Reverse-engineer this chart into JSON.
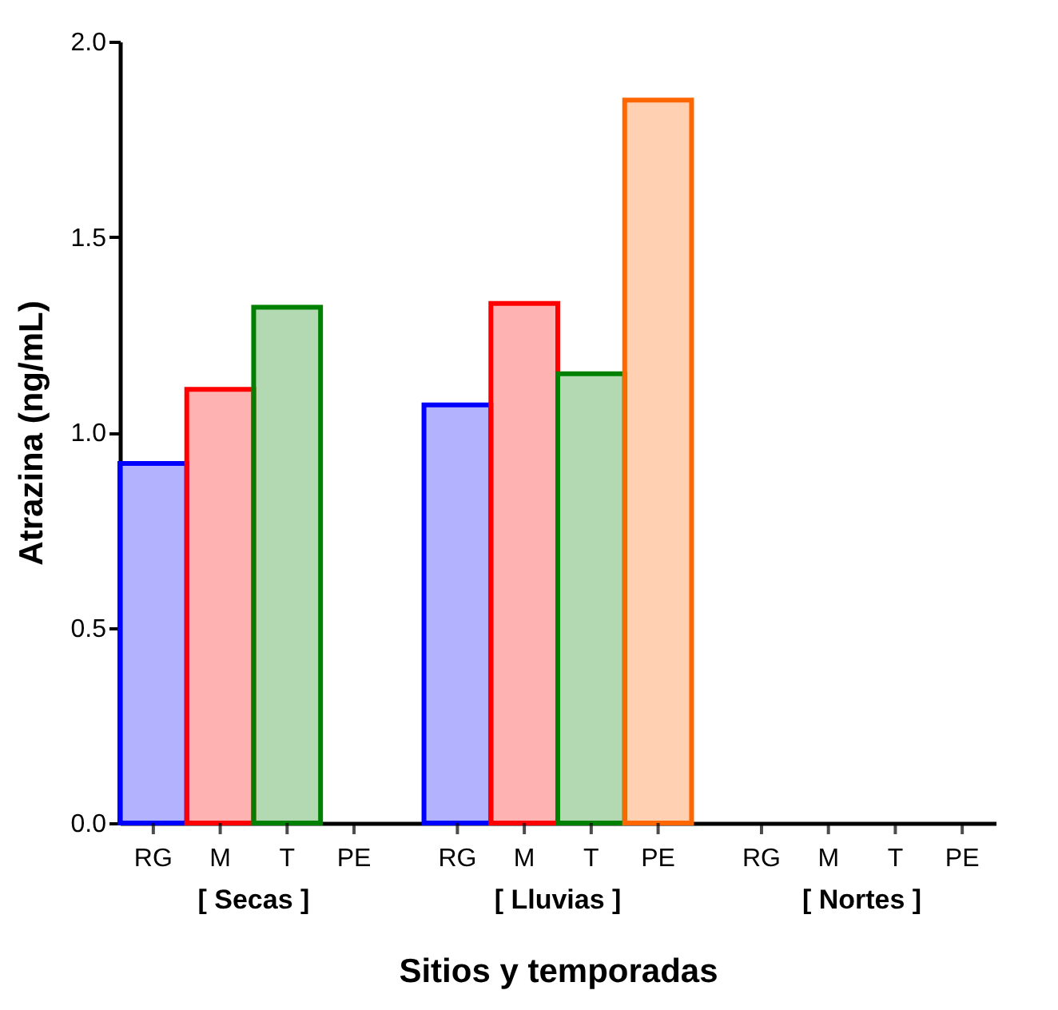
{
  "chart_data": {
    "type": "bar",
    "xlabel": "Sitios y temporadas",
    "ylabel": "Atrazina (ng/mL)",
    "categories": [
      "[ Secas ]",
      "[ Lluvias ]",
      "[ Nortes ]"
    ],
    "series": [
      {
        "name": "RG",
        "color": "#0000ff",
        "values": [
          0.92,
          1.07,
          null
        ]
      },
      {
        "name": "M",
        "color": "#ff0000",
        "values": [
          1.11,
          1.33,
          null
        ]
      },
      {
        "name": "T",
        "color": "#008000",
        "values": [
          1.32,
          1.15,
          null
        ]
      },
      {
        "name": "PE",
        "color": "#ff6600",
        "values": [
          null,
          1.85,
          null
        ]
      }
    ],
    "ylim": [
      0,
      2.0
    ],
    "yticks": [
      {
        "value": 0,
        "label": "0.0"
      },
      0.5,
      {
        "value": 1,
        "label": "1.0"
      },
      1.5,
      {
        "value": 2,
        "label": "2.0"
      }
    ],
    "grid": false,
    "legend": false
  }
}
